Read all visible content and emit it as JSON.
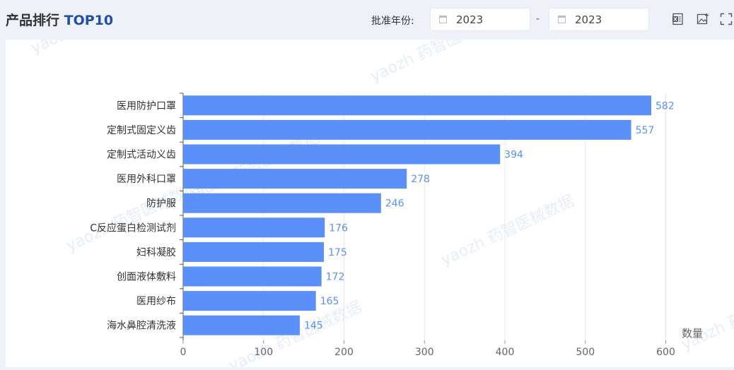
{
  "header": {
    "title_prefix": "产品排行",
    "title_highlight": "TOP10",
    "filter_label": "批准年份:",
    "date_from": "2023",
    "date_separator": "-",
    "date_to": "2023"
  },
  "toolbar": {
    "icons": [
      "excel-export-icon",
      "save-image-icon",
      "fullscreen-icon"
    ]
  },
  "watermark": "yaozh 药智医械数据",
  "colors": {
    "bar": "#5b8ff9",
    "label": "#5b8ff9",
    "axis_text": "#666666",
    "grid": "#e6e9ef"
  },
  "chart_data": {
    "type": "bar",
    "orientation": "horizontal",
    "title": "产品排行 TOP10",
    "categories": [
      "医用防护口罩",
      "定制式固定义齿",
      "定制式活动义齿",
      "医用外科口罩",
      "防护服",
      "C反应蛋白检测试剂",
      "妇科凝胶",
      "创面液体敷料",
      "医用纱布",
      "海水鼻腔清洗液"
    ],
    "values": [
      582,
      557,
      394,
      278,
      246,
      176,
      175,
      172,
      165,
      145
    ],
    "xlabel": "数量",
    "ylabel": "",
    "xlim": [
      0,
      600
    ],
    "xticks": [
      0,
      100,
      200,
      300,
      400,
      500,
      600
    ],
    "grid": true,
    "legend": "none"
  }
}
